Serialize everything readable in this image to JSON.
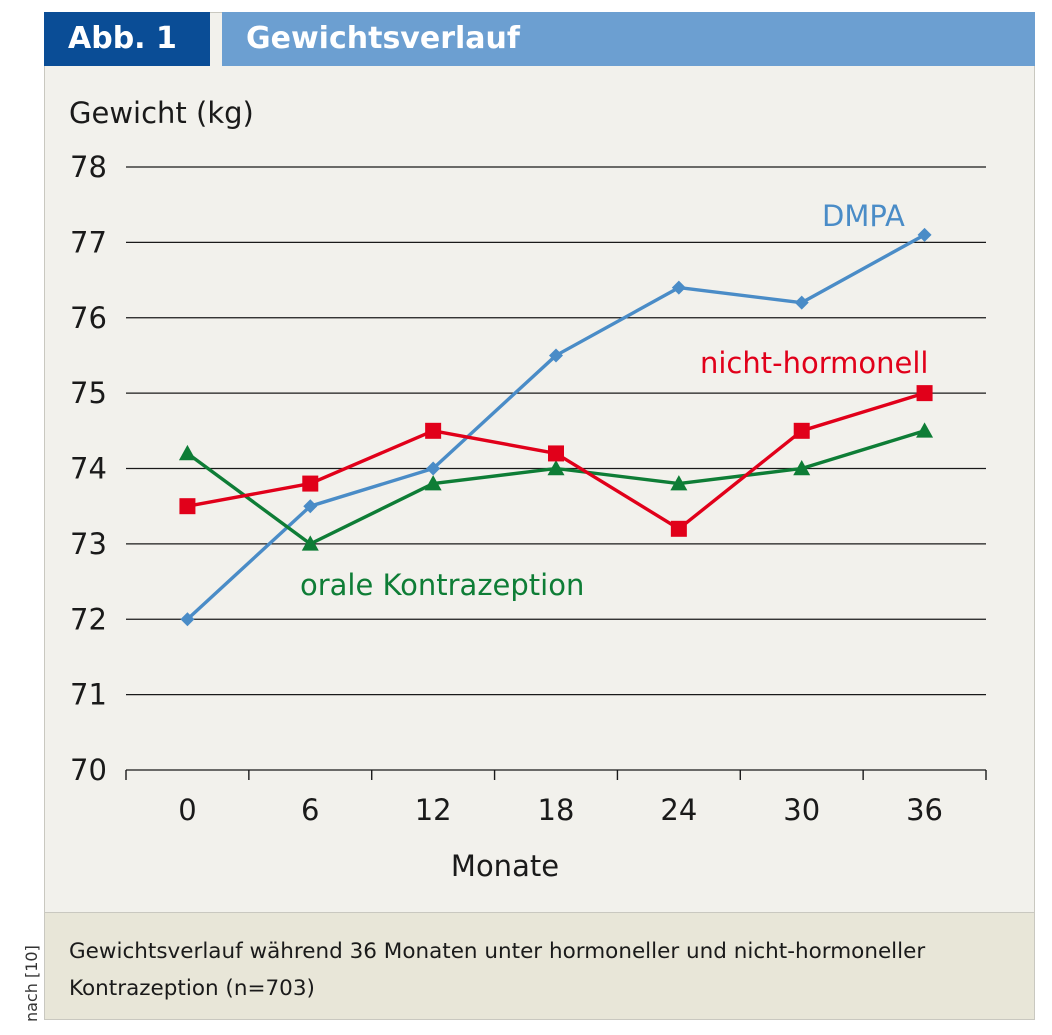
{
  "header": {
    "badge": "Abb. 1",
    "title": "Gewichtsverlauf"
  },
  "caption": "Gewichtsverlauf während 36 Monaten unter hormoneller und nicht-hormoneller Kontrazeption (n=703)",
  "source_note": "nach [10]",
  "chart_data": {
    "type": "line",
    "ylabel": "Gewicht (kg)",
    "xlabel": "Monate",
    "x": [
      0,
      6,
      12,
      18,
      24,
      30,
      36
    ],
    "ylim": [
      70,
      78
    ],
    "yticks": [
      70,
      71,
      72,
      73,
      74,
      75,
      76,
      77,
      78
    ],
    "grid": true,
    "series": [
      {
        "name": "DMPA",
        "color": "#4a8cc7",
        "marker": "diamond",
        "values": [
          72.0,
          73.5,
          74.0,
          75.5,
          76.4,
          76.2,
          77.1
        ]
      },
      {
        "name": "nicht-hormonell",
        "color": "#e1001a",
        "marker": "square",
        "values": [
          73.5,
          73.8,
          74.5,
          74.2,
          73.2,
          74.5,
          75.0
        ]
      },
      {
        "name": "orale Kontrazeption",
        "color": "#0e7d36",
        "marker": "triangle",
        "values": [
          74.2,
          73.0,
          73.8,
          74.0,
          73.8,
          74.0,
          74.5
        ]
      }
    ]
  }
}
